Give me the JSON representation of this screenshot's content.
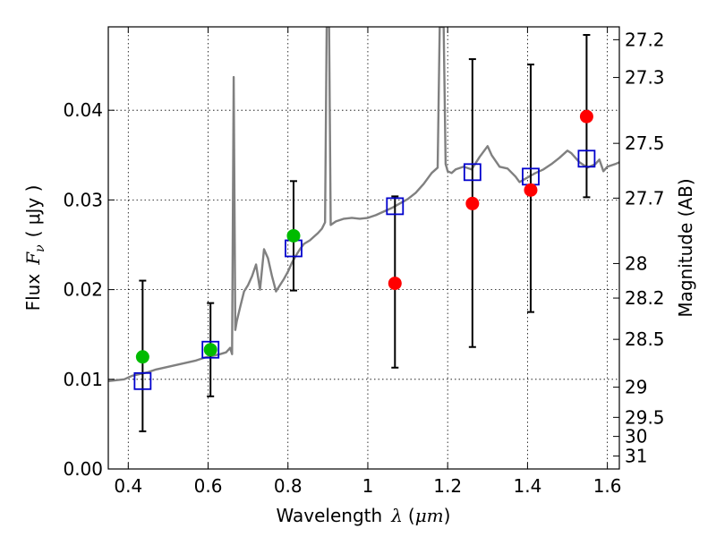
{
  "chart_data": {
    "type": "scatter",
    "xlabel": "Wavelength",
    "xlabel_symbol": "λ",
    "xlabel_unit_open": "(",
    "xlabel_unit": "μm",
    "xlabel_unit_close": ")",
    "ylabel": "Flux",
    "ylabel_symbol": "F",
    "ylabel_subscript": "ν",
    "ylabel_unit": "( μJy )",
    "ylabel_right": "Magnitude (AB)",
    "xlim": [
      0.35,
      1.63
    ],
    "ylim": [
      0.0,
      0.0493
    ],
    "grid": true,
    "x_ticks": [
      {
        "value": 0.4,
        "label": "0.4"
      },
      {
        "value": 0.6,
        "label": "0.6"
      },
      {
        "value": 0.8,
        "label": "0.8"
      },
      {
        "value": 1.0,
        "label": "1"
      },
      {
        "value": 1.2,
        "label": "1.2"
      },
      {
        "value": 1.4,
        "label": "1.4"
      },
      {
        "value": 1.6,
        "label": "1.6"
      }
    ],
    "y_ticks": [
      {
        "value": 0.0,
        "label": "0.00"
      },
      {
        "value": 0.01,
        "label": "0.01"
      },
      {
        "value": 0.02,
        "label": "0.02"
      },
      {
        "value": 0.03,
        "label": "0.03"
      },
      {
        "value": 0.04,
        "label": "0.04"
      }
    ],
    "magnitude_ticks": [
      {
        "value": 27.2,
        "label": "27.2"
      },
      {
        "value": 27.3,
        "label": "27.3"
      },
      {
        "value": 27.5,
        "label": "27.5"
      },
      {
        "value": 27.7,
        "label": "27.7"
      },
      {
        "value": 28,
        "label": "28"
      },
      {
        "value": 28.2,
        "label": "28.2"
      },
      {
        "value": 28.5,
        "label": "28.5"
      },
      {
        "value": 29,
        "label": "29"
      },
      {
        "value": 29.5,
        "label": "29.5"
      },
      {
        "value": 30,
        "label": "30"
      },
      {
        "value": 31,
        "label": "31"
      }
    ],
    "spectrum": {
      "name": "model SED",
      "color": "#808080",
      "points": [
        [
          0.35,
          0.0098
        ],
        [
          0.37,
          0.0099
        ],
        [
          0.39,
          0.01
        ],
        [
          0.41,
          0.0104
        ],
        [
          0.43,
          0.0106
        ],
        [
          0.45,
          0.0108
        ],
        [
          0.47,
          0.0111
        ],
        [
          0.49,
          0.0113
        ],
        [
          0.51,
          0.0115
        ],
        [
          0.53,
          0.0117
        ],
        [
          0.55,
          0.0119
        ],
        [
          0.57,
          0.0121
        ],
        [
          0.59,
          0.0124
        ],
        [
          0.61,
          0.0126
        ],
        [
          0.63,
          0.0128
        ],
        [
          0.645,
          0.013
        ],
        [
          0.655,
          0.0135
        ],
        [
          0.66,
          0.0128
        ],
        [
          0.664,
          0.0437
        ],
        [
          0.668,
          0.0155
        ],
        [
          0.672,
          0.0165
        ],
        [
          0.68,
          0.018
        ],
        [
          0.69,
          0.0198
        ],
        [
          0.7,
          0.0205
        ],
        [
          0.71,
          0.0215
        ],
        [
          0.72,
          0.0228
        ],
        [
          0.73,
          0.02
        ],
        [
          0.74,
          0.0245
        ],
        [
          0.75,
          0.0235
        ],
        [
          0.76,
          0.0215
        ],
        [
          0.77,
          0.0198
        ],
        [
          0.78,
          0.0205
        ],
        [
          0.79,
          0.0212
        ],
        [
          0.8,
          0.022
        ],
        [
          0.81,
          0.023
        ],
        [
          0.82,
          0.0238
        ],
        [
          0.83,
          0.0245
        ],
        [
          0.84,
          0.0251
        ],
        [
          0.855,
          0.0255
        ],
        [
          0.865,
          0.0259
        ],
        [
          0.875,
          0.0263
        ],
        [
          0.885,
          0.0268
        ],
        [
          0.893,
          0.0275
        ],
        [
          0.897,
          0.0493
        ],
        [
          0.903,
          0.0493
        ],
        [
          0.907,
          0.0272
        ],
        [
          0.92,
          0.0276
        ],
        [
          0.94,
          0.0279
        ],
        [
          0.96,
          0.028
        ],
        [
          0.98,
          0.0279
        ],
        [
          1.0,
          0.028
        ],
        [
          1.02,
          0.0283
        ],
        [
          1.04,
          0.0287
        ],
        [
          1.06,
          0.0291
        ],
        [
          1.08,
          0.0296
        ],
        [
          1.1,
          0.0301
        ],
        [
          1.12,
          0.0308
        ],
        [
          1.14,
          0.0318
        ],
        [
          1.16,
          0.033
        ],
        [
          1.175,
          0.0336
        ],
        [
          1.18,
          0.0493
        ],
        [
          1.19,
          0.0493
        ],
        [
          1.195,
          0.034
        ],
        [
          1.2,
          0.0332
        ],
        [
          1.21,
          0.033
        ],
        [
          1.22,
          0.0334
        ],
        [
          1.24,
          0.0337
        ],
        [
          1.26,
          0.0334
        ],
        [
          1.28,
          0.0348
        ],
        [
          1.3,
          0.036
        ],
        [
          1.31,
          0.035
        ],
        [
          1.33,
          0.0337
        ],
        [
          1.35,
          0.0335
        ],
        [
          1.37,
          0.0326
        ],
        [
          1.38,
          0.032
        ],
        [
          1.4,
          0.0325
        ],
        [
          1.42,
          0.033
        ],
        [
          1.44,
          0.0334
        ],
        [
          1.46,
          0.034
        ],
        [
          1.48,
          0.0347
        ],
        [
          1.5,
          0.0355
        ],
        [
          1.51,
          0.0352
        ],
        [
          1.53,
          0.0342
        ],
        [
          1.55,
          0.0336
        ],
        [
          1.57,
          0.034
        ],
        [
          1.58,
          0.0345
        ],
        [
          1.59,
          0.0332
        ],
        [
          1.6,
          0.0337
        ],
        [
          1.62,
          0.034
        ],
        [
          1.63,
          0.0342
        ]
      ]
    },
    "observed_points": [
      {
        "x": 0.436,
        "y": 0.0125,
        "color": "#00bb00",
        "err_low": 0.0042,
        "err_high": 0.021
      },
      {
        "x": 0.606,
        "y": 0.0133,
        "color": "#00bb00",
        "err_low": 0.0081,
        "err_high": 0.0185
      },
      {
        "x": 0.814,
        "y": 0.026,
        "color": "#00bb00",
        "err_low": 0.0199,
        "err_high": 0.0321
      },
      {
        "x": 1.068,
        "y": 0.0207,
        "color": "#ff0000",
        "err_low": 0.0113,
        "err_high": 0.0304
      },
      {
        "x": 1.262,
        "y": 0.0296,
        "color": "#ff0000",
        "err_low": 0.0136,
        "err_high": 0.0457
      },
      {
        "x": 1.408,
        "y": 0.0311,
        "color": "#ff0000",
        "err_low": 0.0175,
        "err_high": 0.0451
      },
      {
        "x": 1.548,
        "y": 0.0393,
        "color": "#ff0000",
        "err_low": 0.0303,
        "err_high": 0.0484
      }
    ],
    "model_points": [
      {
        "x": 0.436,
        "y": 0.0098
      },
      {
        "x": 0.606,
        "y": 0.0133
      },
      {
        "x": 0.814,
        "y": 0.0246
      },
      {
        "x": 1.068,
        "y": 0.0293
      },
      {
        "x": 1.262,
        "y": 0.0331
      },
      {
        "x": 1.408,
        "y": 0.0326
      },
      {
        "x": 1.548,
        "y": 0.0346
      }
    ],
    "model_marker_color": "#0000cc"
  }
}
